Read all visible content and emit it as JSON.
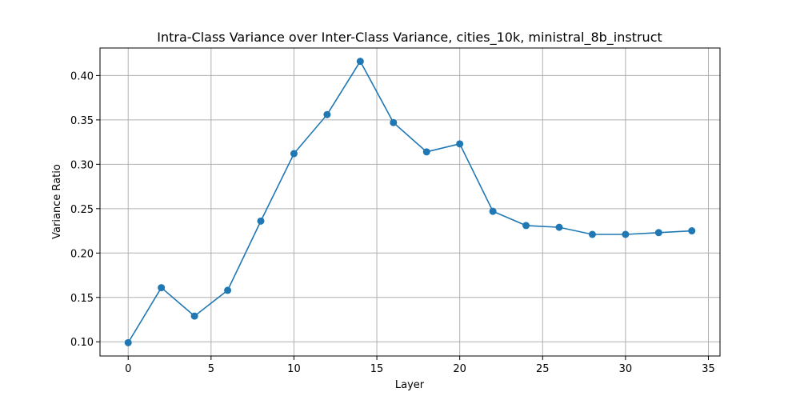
{
  "chart_data": {
    "type": "line",
    "title": "Intra-Class Variance over Inter-Class Variance, cities_10k, ministral_8b_instruct",
    "xlabel": "Layer",
    "ylabel": "Variance Ratio",
    "xlim": [
      -1.7,
      35.7
    ],
    "ylim": [
      0.084,
      0.431
    ],
    "xticks": [
      0,
      5,
      10,
      15,
      20,
      25,
      30,
      35
    ],
    "yticks": [
      0.1,
      0.15,
      0.2,
      0.25,
      0.3,
      0.35,
      0.4
    ],
    "xtick_labels": [
      "0",
      "5",
      "10",
      "15",
      "20",
      "25",
      "30",
      "35"
    ],
    "ytick_labels": [
      "0.10",
      "0.15",
      "0.20",
      "0.25",
      "0.30",
      "0.35",
      "0.40"
    ],
    "grid": true,
    "color": "#1f77b4",
    "series": [
      {
        "x": [
          0,
          2,
          4,
          6,
          8,
          10,
          12,
          14,
          16,
          18,
          20,
          22,
          24,
          26,
          28,
          30,
          32,
          34
        ],
        "y": [
          0.099,
          0.161,
          0.129,
          0.158,
          0.236,
          0.312,
          0.356,
          0.416,
          0.347,
          0.314,
          0.323,
          0.247,
          0.231,
          0.229,
          0.221,
          0.221,
          0.223,
          0.225
        ]
      }
    ]
  }
}
